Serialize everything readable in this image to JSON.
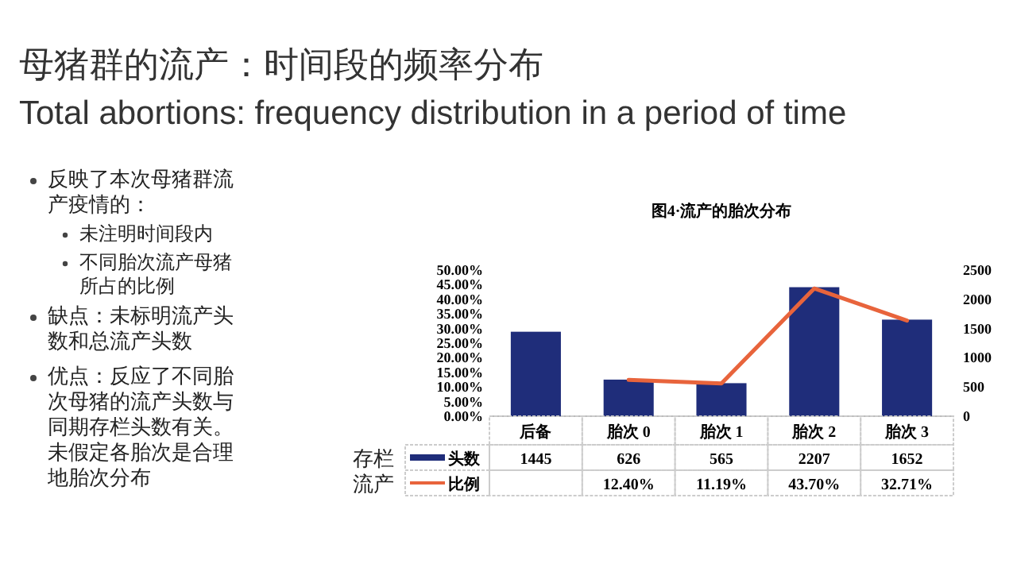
{
  "chart_data": {
    "type": "bar",
    "title": "母猪群的流产：时间段的频率分布",
    "subtitle": "Total abortions: frequency distribution in a period of time",
    "categories": [
      "后备",
      "胎次 0",
      "胎次 1",
      "胎次 2",
      "胎次 3"
    ],
    "series": [
      {
        "name": "头数",
        "axis": "y2",
        "color": "#1f2d7a",
        "values": [
          1445,
          626,
          565,
          2207,
          1652
        ],
        "value_labels": [
          "1445",
          "626",
          "565",
          "2207",
          "1652"
        ]
      },
      {
        "name": "比例",
        "type": "line",
        "axis": "y",
        "color": "#e8643c",
        "values": [
          null,
          12.4,
          11.19,
          43.7,
          32.71
        ],
        "value_labels": [
          null,
          "12.40%",
          "11.19%",
          "43.70%",
          "32.71%"
        ]
      }
    ],
    "ylim": [
      0,
      50
    ],
    "yticks": [
      {
        "value": 0,
        "label": "0.00%"
      },
      {
        "value": 5,
        "label": "5.00%"
      },
      {
        "value": 10,
        "label": "10.00%"
      },
      {
        "value": 15,
        "label": "15.00%"
      },
      {
        "value": 20,
        "label": "20.00%"
      },
      {
        "value": 25,
        "label": "25.00%"
      },
      {
        "value": 30,
        "label": "30.00%"
      },
      {
        "value": 35,
        "label": "35.00%"
      },
      {
        "value": 40,
        "label": "40.00%"
      },
      {
        "value": 45,
        "label": "45.00%"
      },
      {
        "value": 50,
        "label": "50.00%"
      }
    ],
    "y2lim": [
      0,
      2500
    ],
    "y2ticks": [
      0,
      500,
      1000,
      1500,
      2000,
      2500
    ],
    "legend": "bottom",
    "annotations": [
      "图4·流产的胎次分布",
      "反映了本次母猪群流产疫情的：",
      "未注明时间段内",
      "不同胎次流产母猪所占的比例",
      "缺点：未标明流产头数和总流产头数",
      "优点：反应了不同胎次母猪的流产头数与同期存栏头数有关。未假定各胎次是合理地胎次分布",
      "存栏",
      "流产"
    ]
  }
}
